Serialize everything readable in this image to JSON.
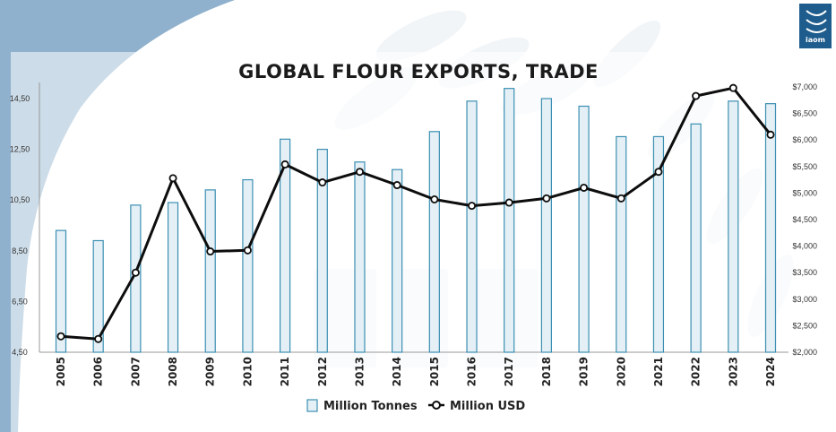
{
  "logo": {
    "text": "iaom",
    "color": "#1d5c8c"
  },
  "colors": {
    "background_blue": "#8fb1cd",
    "bar_fill": "#e4f0f6",
    "bar_stroke": "#3c8fb2",
    "line": "#0d0d0d",
    "marker_fill": "#ffffff",
    "watermark": "#f1f5f8"
  },
  "chart_data": {
    "type": "bar",
    "title": "GLOBAL FLOUR EXPORTS, TRADE",
    "categories": [
      "2005",
      "2006",
      "2007",
      "2008",
      "2009",
      "2010",
      "2011",
      "2012",
      "2013",
      "2014",
      "2015",
      "2016",
      "2017",
      "2018",
      "2019",
      "2020",
      "2021",
      "2022",
      "2023",
      "2024"
    ],
    "series": [
      {
        "name": "Million Tonnes",
        "type": "bar",
        "axis": "left",
        "values": [
          9.3,
          8.9,
          10.3,
          10.4,
          10.9,
          11.3,
          12.9,
          12.5,
          12.0,
          11.7,
          13.2,
          14.4,
          14.9,
          14.5,
          14.2,
          13.0,
          13.0,
          13.5,
          14.4,
          14.3
        ]
      },
      {
        "name": "Million USD",
        "type": "line",
        "axis": "right",
        "values": [
          2300,
          2250,
          3500,
          5280,
          3900,
          3920,
          5540,
          5200,
          5400,
          5150,
          4880,
          4760,
          4820,
          4900,
          5100,
          4900,
          5400,
          6830,
          6980,
          6100
        ]
      }
    ],
    "y_left": {
      "ticks": [
        "4,50",
        "6,50",
        "8,50",
        "10,50",
        "12,50",
        "14,50"
      ],
      "tick_values": [
        4.5,
        6.5,
        8.5,
        10.5,
        12.5,
        14.5
      ],
      "range": [
        4.5,
        15.6
      ]
    },
    "y_right": {
      "ticks": [
        "$2,000",
        "$2,500",
        "$3,000",
        "$3,500",
        "$4,000",
        "$4,500",
        "$5,000",
        "$5,500",
        "$6,000",
        "$6,500",
        "$7,000"
      ],
      "tick_values": [
        2000,
        2500,
        3000,
        3500,
        4000,
        4500,
        5000,
        5500,
        6000,
        6500,
        7000
      ],
      "range": [
        2000,
        7000
      ]
    },
    "legend": {
      "position": "bottom",
      "entries": [
        "Million Tonnes",
        "Million USD"
      ]
    },
    "grid": false
  }
}
